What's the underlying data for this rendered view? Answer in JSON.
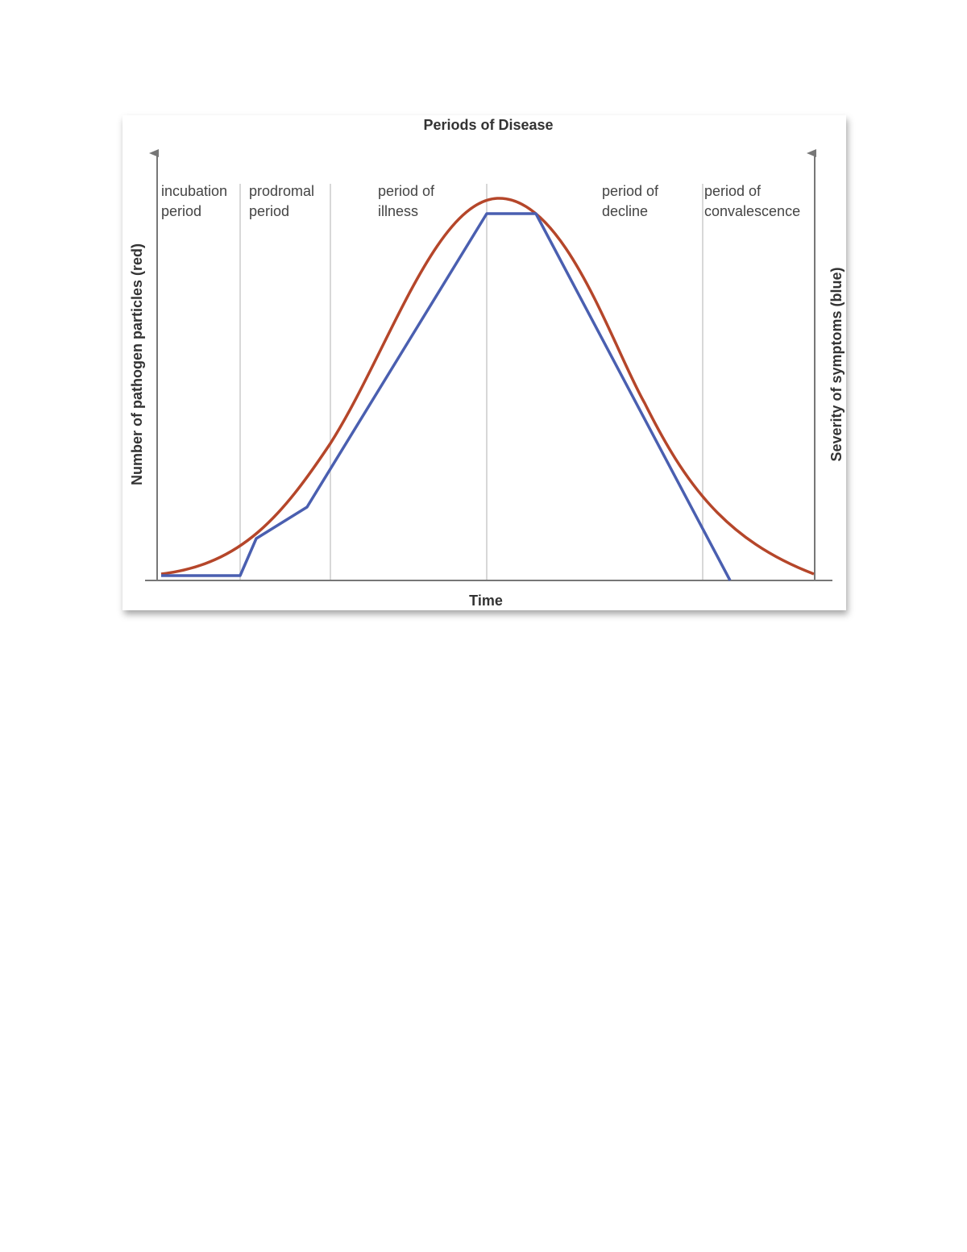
{
  "title": "Periods of Disease",
  "x_axis_label": "Time",
  "left_axis_label": "Number of pathogen particles (red)",
  "right_axis_label": "Severity of symptoms (blue)",
  "periods": [
    {
      "lines": [
        "incubation",
        "period"
      ]
    },
    {
      "lines": [
        "prodromal",
        "period"
      ]
    },
    {
      "lines": [
        "period of",
        "illness"
      ]
    },
    {
      "lines": [
        "period of",
        "decline"
      ]
    },
    {
      "lines": [
        "period of",
        "convalescence"
      ]
    }
  ]
}
